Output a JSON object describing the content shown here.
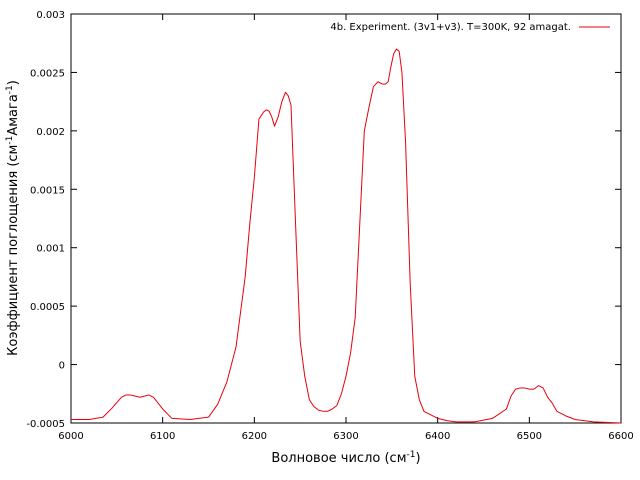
{
  "chart_data": {
    "type": "line",
    "title": "",
    "xlabel_main": "Волновое число (см",
    "xlabel_sup": "-1",
    "xlabel_end": ")",
    "ylabel_main": "Коэффициент поглощения (см",
    "ylabel_sup1": "-1",
    "ylabel_mid": "Амага",
    "ylabel_sup2": "-1",
    "ylabel_end": ")",
    "xlim": [
      6000,
      6600
    ],
    "ylim": [
      -0.0005,
      0.003
    ],
    "x_ticks": [
      6000,
      6100,
      6200,
      6300,
      6400,
      6500,
      6600
    ],
    "x_tick_labels": [
      "6000",
      "6100",
      "6200",
      "6300",
      "6400",
      "6500",
      "6600"
    ],
    "y_ticks": [
      -0.0005,
      0,
      0.0005,
      0.001,
      0.0015,
      0.002,
      0.0025,
      0.003
    ],
    "y_tick_labels": [
      "-0.0005",
      "0",
      "0.0005",
      "0.001",
      "0.0015",
      "0.002",
      "0.0025",
      "0.003"
    ],
    "grid": false,
    "legend_position": "top-right",
    "series": [
      {
        "name": "4b. Experiment. (3v1+v3). T=300K, 92 amagat.",
        "color": "#e8000b",
        "x": [
          6000,
          6020,
          6035,
          6045,
          6055,
          6060,
          6065,
          6070,
          6075,
          6080,
          6085,
          6090,
          6100,
          6110,
          6130,
          6150,
          6160,
          6170,
          6180,
          6190,
          6195,
          6200,
          6205,
          6210,
          6213,
          6216,
          6219,
          6222,
          6226,
          6230,
          6234,
          6237,
          6240,
          6245,
          6250,
          6255,
          6260,
          6265,
          6270,
          6275,
          6280,
          6285,
          6290,
          6295,
          6300,
          6305,
          6310,
          6315,
          6320,
          6325,
          6330,
          6335,
          6340,
          6343,
          6346,
          6349,
          6352,
          6355,
          6358,
          6361,
          6365,
          6370,
          6375,
          6380,
          6385,
          6390,
          6400,
          6410,
          6420,
          6440,
          6460,
          6475,
          6480,
          6485,
          6490,
          6495,
          6500,
          6505,
          6510,
          6515,
          6520,
          6525,
          6530,
          6540,
          6550,
          6570,
          6600
        ],
        "y": [
          -0.00047,
          -0.00047,
          -0.00045,
          -0.00037,
          -0.00028,
          -0.00026,
          -0.00026,
          -0.00027,
          -0.00028,
          -0.00027,
          -0.00026,
          -0.00028,
          -0.00038,
          -0.00046,
          -0.00047,
          -0.00045,
          -0.00034,
          -0.00015,
          0.00015,
          0.00075,
          0.0012,
          0.0016,
          0.0021,
          0.00216,
          0.00218,
          0.00217,
          0.00212,
          0.00204,
          0.00212,
          0.00225,
          0.00233,
          0.0023,
          0.00222,
          0.0012,
          0.0002,
          -0.0001,
          -0.0003,
          -0.00036,
          -0.00039,
          -0.0004,
          -0.0004,
          -0.00038,
          -0.00035,
          -0.00025,
          -0.0001,
          0.0001,
          0.0004,
          0.0012,
          0.002,
          0.0022,
          0.00238,
          0.00242,
          0.0024,
          0.0024,
          0.00242,
          0.00255,
          0.00266,
          0.0027,
          0.00268,
          0.0025,
          0.0019,
          0.0007,
          -0.0001,
          -0.0003,
          -0.0004,
          -0.00042,
          -0.00046,
          -0.00048,
          -0.00049,
          -0.00049,
          -0.00046,
          -0.00038,
          -0.00027,
          -0.00021,
          -0.0002,
          -0.0002,
          -0.00021,
          -0.00021,
          -0.00018,
          -0.0002,
          -0.00028,
          -0.00033,
          -0.0004,
          -0.00044,
          -0.00047,
          -0.00049,
          -0.0005
        ]
      }
    ]
  }
}
